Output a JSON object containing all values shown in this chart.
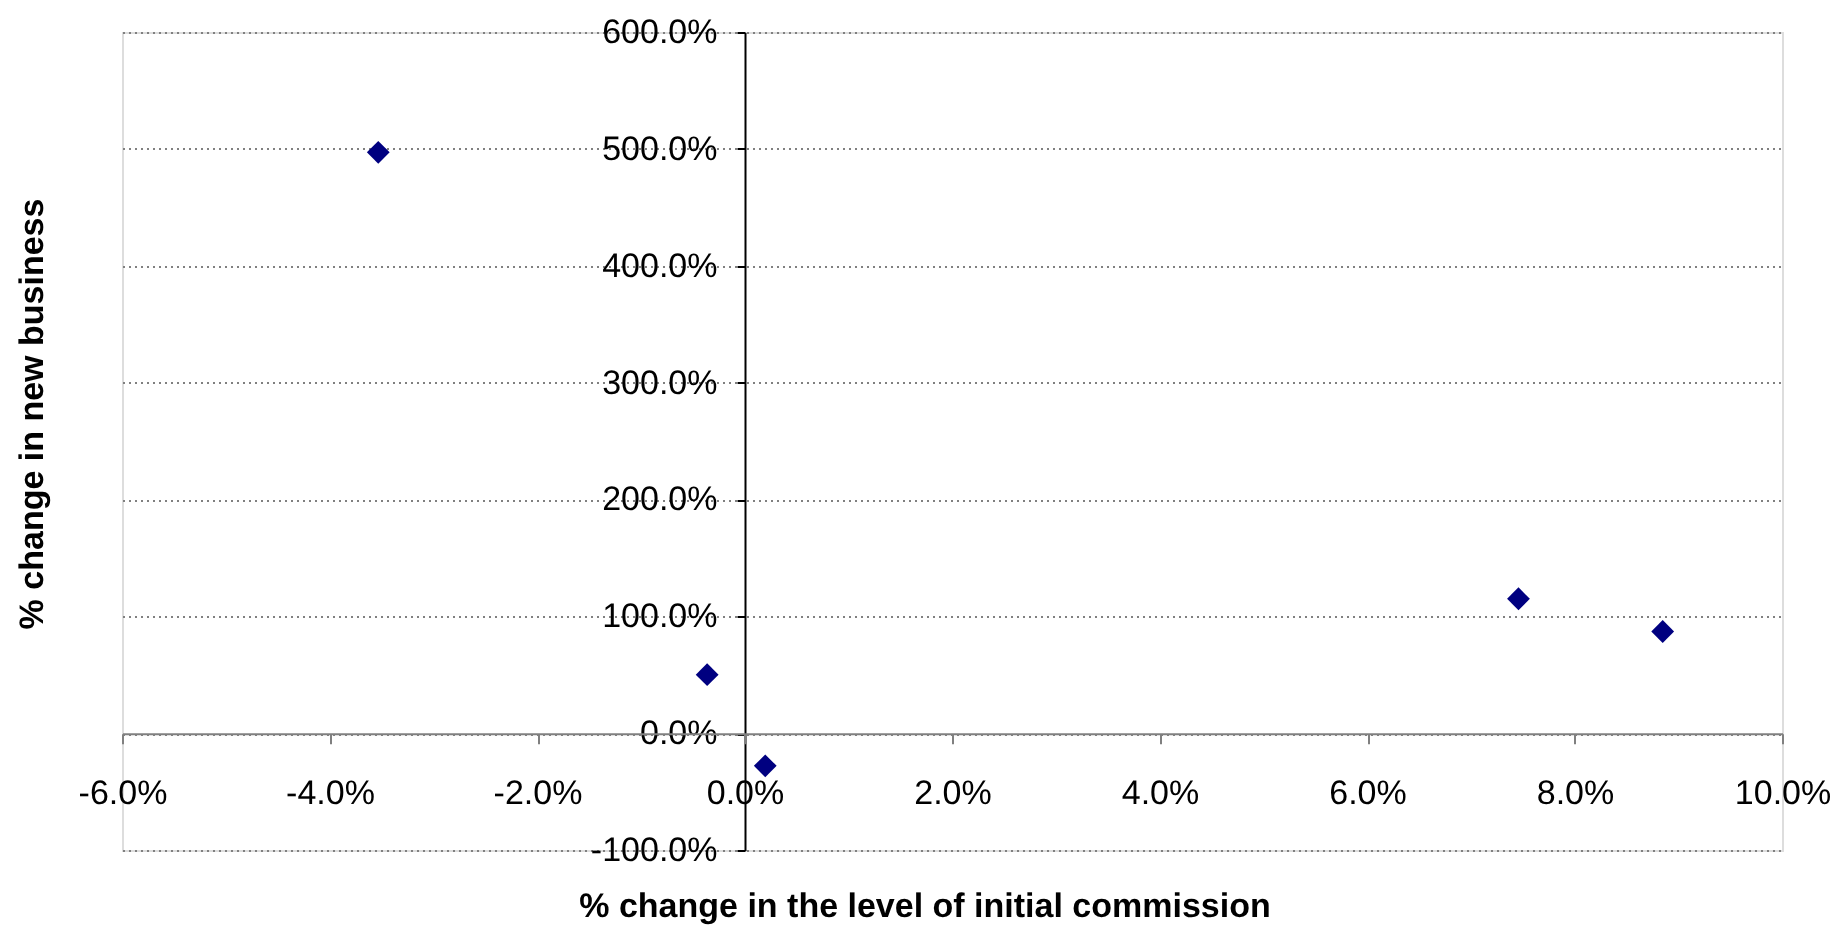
{
  "chart_data": {
    "type": "scatter",
    "xlabel": "% change in the level of initial commission",
    "ylabel": "% change in new business",
    "x": [
      -3.53,
      -0.36,
      0.2,
      7.46,
      8.85
    ],
    "series": [
      {
        "color": "#000080",
        "values": [
          497,
          50,
          -28,
          115,
          87
        ]
      }
    ],
    "xlim": [
      -6,
      10
    ],
    "ylim": [
      -100,
      600
    ],
    "xticks": [
      {
        "value": -6,
        "label": "-6.0%"
      },
      {
        "value": -4,
        "label": "-4.0%"
      },
      {
        "value": -2,
        "label": "-2.0%"
      },
      {
        "value": 0,
        "label": "0.0%"
      },
      {
        "value": 2,
        "label": "2.0%"
      },
      {
        "value": 4,
        "label": "4.0%"
      },
      {
        "value": 6,
        "label": "6.0%"
      },
      {
        "value": 8,
        "label": "8.0%"
      },
      {
        "value": 10,
        "label": "10.0%"
      }
    ],
    "yticks": [
      {
        "value": -100,
        "label": "-100.0%"
      },
      {
        "value": 0,
        "label": "0.0%"
      },
      {
        "value": 100,
        "label": "100.0%"
      },
      {
        "value": 200,
        "label": "200.0%"
      },
      {
        "value": 300,
        "label": "300.0%"
      },
      {
        "value": 400,
        "label": "400.0%"
      },
      {
        "value": 500,
        "label": "500.0%"
      },
      {
        "value": 600,
        "label": "600.0%"
      }
    ],
    "grid": "y",
    "marker": "diamond"
  }
}
